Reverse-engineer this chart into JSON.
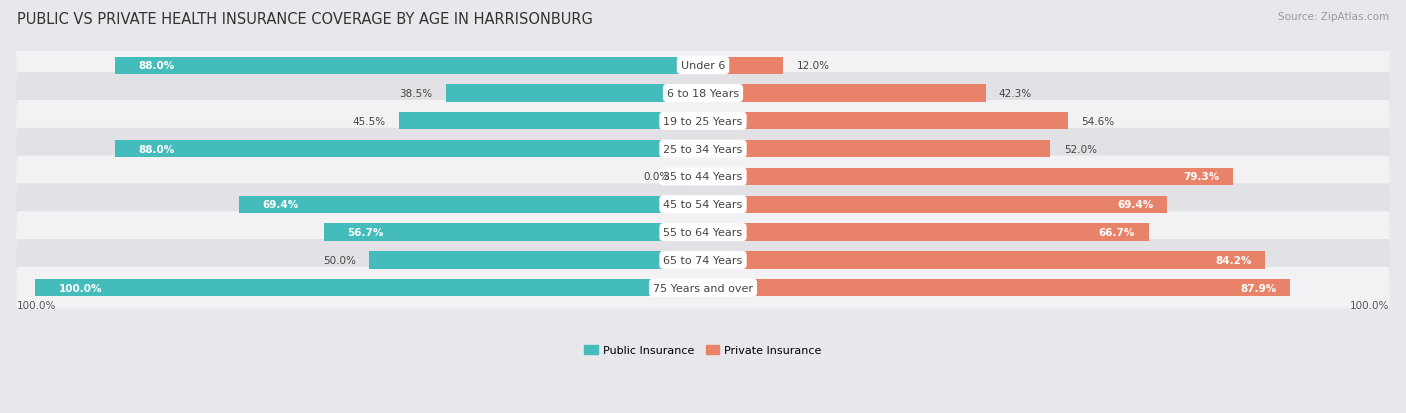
{
  "title": "PUBLIC VS PRIVATE HEALTH INSURANCE COVERAGE BY AGE IN HARRISONBURG",
  "source": "Source: ZipAtlas.com",
  "categories": [
    "Under 6",
    "6 to 18 Years",
    "19 to 25 Years",
    "25 to 34 Years",
    "35 to 44 Years",
    "45 to 54 Years",
    "55 to 64 Years",
    "65 to 74 Years",
    "75 Years and over"
  ],
  "public_values": [
    88.0,
    38.5,
    45.5,
    88.0,
    0.0,
    69.4,
    56.7,
    50.0,
    100.0
  ],
  "private_values": [
    12.0,
    42.3,
    54.6,
    52.0,
    79.3,
    69.4,
    66.7,
    84.2,
    87.9
  ],
  "public_color": "#45BCBC",
  "public_color_light": "#85D5D5",
  "private_color": "#E8836A",
  "bg_color": "#e8e8ec",
  "row_bg_light": "#f2f2f5",
  "row_bg_dark": "#e2e2e6",
  "title_fontsize": 10.5,
  "source_fontsize": 7.5,
  "label_fontsize": 8.0,
  "value_fontsize": 7.5,
  "axis_max": 100.0,
  "legend_labels": [
    "Public Insurance",
    "Private Insurance"
  ],
  "bottom_label": "100.0%"
}
